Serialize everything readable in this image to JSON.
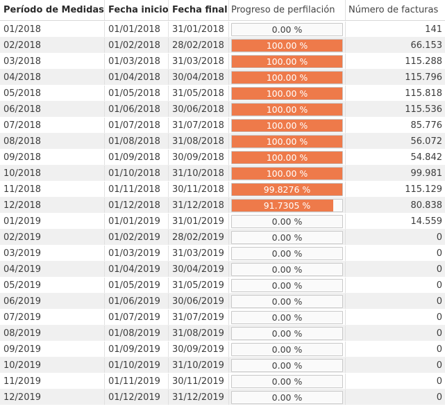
{
  "table": {
    "columns": [
      "Período de Medidas",
      "Fecha inicio",
      "Fecha final",
      "Progreso de perfilación",
      "Número de facturas"
    ],
    "rows": [
      {
        "period": "01/2018",
        "start": "01/01/2018",
        "end": "31/01/2018",
        "progress_label": "0.00 %",
        "progress": 0.0,
        "invoices": "141"
      },
      {
        "period": "02/2018",
        "start": "01/02/2018",
        "end": "28/02/2018",
        "progress_label": "100.00 %",
        "progress": 100.0,
        "invoices": "66.153"
      },
      {
        "period": "03/2018",
        "start": "01/03/2018",
        "end": "31/03/2018",
        "progress_label": "100.00 %",
        "progress": 100.0,
        "invoices": "115.288"
      },
      {
        "period": "04/2018",
        "start": "01/04/2018",
        "end": "30/04/2018",
        "progress_label": "100.00 %",
        "progress": 100.0,
        "invoices": "115.796"
      },
      {
        "period": "05/2018",
        "start": "01/05/2018",
        "end": "31/05/2018",
        "progress_label": "100.00 %",
        "progress": 100.0,
        "invoices": "115.818"
      },
      {
        "period": "06/2018",
        "start": "01/06/2018",
        "end": "30/06/2018",
        "progress_label": "100.00 %",
        "progress": 100.0,
        "invoices": "115.536"
      },
      {
        "period": "07/2018",
        "start": "01/07/2018",
        "end": "31/07/2018",
        "progress_label": "100.00 %",
        "progress": 100.0,
        "invoices": "85.776"
      },
      {
        "period": "08/2018",
        "start": "01/08/2018",
        "end": "31/08/2018",
        "progress_label": "100.00 %",
        "progress": 100.0,
        "invoices": "56.072"
      },
      {
        "period": "09/2018",
        "start": "01/09/2018",
        "end": "30/09/2018",
        "progress_label": "100.00 %",
        "progress": 100.0,
        "invoices": "54.842"
      },
      {
        "period": "10/2018",
        "start": "01/10/2018",
        "end": "31/10/2018",
        "progress_label": "100.00 %",
        "progress": 100.0,
        "invoices": "99.981"
      },
      {
        "period": "11/2018",
        "start": "01/11/2018",
        "end": "30/11/2018",
        "progress_label": "99.8276 %",
        "progress": 99.8276,
        "invoices": "115.129"
      },
      {
        "period": "12/2018",
        "start": "01/12/2018",
        "end": "31/12/2018",
        "progress_label": "91.7305 %",
        "progress": 91.7305,
        "invoices": "80.838"
      },
      {
        "period": "01/2019",
        "start": "01/01/2019",
        "end": "31/01/2019",
        "progress_label": "0.00 %",
        "progress": 0.0,
        "invoices": "14.559"
      },
      {
        "period": "02/2019",
        "start": "01/02/2019",
        "end": "28/02/2019",
        "progress_label": "0.00 %",
        "progress": 0.0,
        "invoices": "0"
      },
      {
        "period": "03/2019",
        "start": "01/03/2019",
        "end": "31/03/2019",
        "progress_label": "0.00 %",
        "progress": 0.0,
        "invoices": "0"
      },
      {
        "period": "04/2019",
        "start": "01/04/2019",
        "end": "30/04/2019",
        "progress_label": "0.00 %",
        "progress": 0.0,
        "invoices": "0"
      },
      {
        "period": "05/2019",
        "start": "01/05/2019",
        "end": "31/05/2019",
        "progress_label": "0.00 %",
        "progress": 0.0,
        "invoices": "0"
      },
      {
        "period": "06/2019",
        "start": "01/06/2019",
        "end": "30/06/2019",
        "progress_label": "0.00 %",
        "progress": 0.0,
        "invoices": "0"
      },
      {
        "period": "07/2019",
        "start": "01/07/2019",
        "end": "31/07/2019",
        "progress_label": "0.00 %",
        "progress": 0.0,
        "invoices": "0"
      },
      {
        "period": "08/2019",
        "start": "01/08/2019",
        "end": "31/08/2019",
        "progress_label": "0.00 %",
        "progress": 0.0,
        "invoices": "0"
      },
      {
        "period": "09/2019",
        "start": "01/09/2019",
        "end": "30/09/2019",
        "progress_label": "0.00 %",
        "progress": 0.0,
        "invoices": "0"
      },
      {
        "period": "10/2019",
        "start": "01/10/2019",
        "end": "31/10/2019",
        "progress_label": "0.00 %",
        "progress": 0.0,
        "invoices": "0"
      },
      {
        "period": "11/2019",
        "start": "01/11/2019",
        "end": "30/11/2019",
        "progress_label": "0.00 %",
        "progress": 0.0,
        "invoices": "0"
      },
      {
        "period": "12/2019",
        "start": "01/12/2019",
        "end": "31/12/2019",
        "progress_label": "0.00 %",
        "progress": 0.0,
        "invoices": "0"
      }
    ]
  },
  "colors": {
    "progress_fill": "#ee7a4a",
    "alt_row": "#f0f0f0"
  }
}
